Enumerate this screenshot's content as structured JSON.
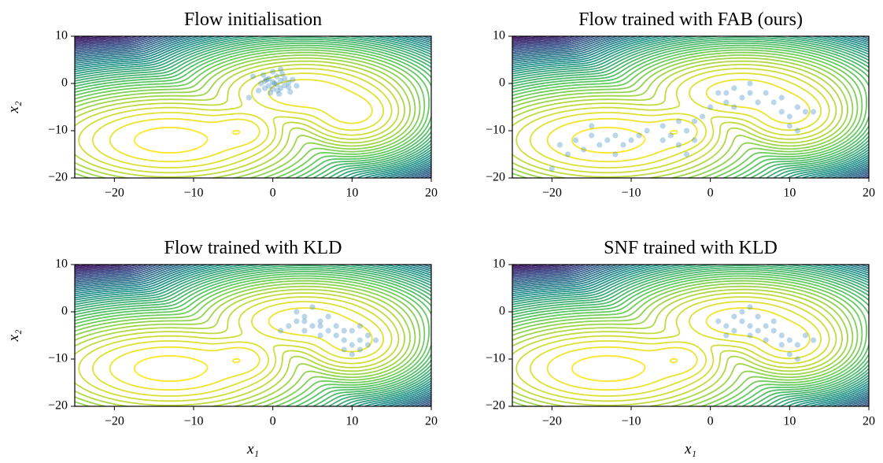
{
  "chart_data": [
    {
      "type": "scatter",
      "title": "Flow initialisation",
      "ylabel": "x₂",
      "xlim": [
        -25,
        20
      ],
      "ylim": [
        -20,
        10
      ],
      "xticks": [
        {
          "value": -20,
          "label": "−20"
        },
        {
          "value": -10,
          "label": "−10"
        },
        0,
        10,
        20
      ],
      "yticks": [
        {
          "value": -20,
          "label": "−20"
        },
        {
          "value": -10,
          "label": "−10"
        },
        0,
        10
      ],
      "series": [
        {
          "color": "#1f77b4",
          "x": [
            -1.5,
            -1,
            -0.5,
            0,
            0.5,
            1,
            1.5,
            2,
            -1,
            0,
            1,
            2,
            -0.5,
            0.5,
            1.5,
            -1.8,
            2.5,
            0,
            -0.3,
            0.8,
            1.2,
            -1.2,
            0.2,
            2.2,
            -2.5,
            -3,
            1,
            0.6,
            -0.8,
            3
          ],
          "y": [
            0,
            0.5,
            -0.5,
            0.3,
            -0.2,
            0.6,
            -0.4,
            0.2,
            -1,
            -1.2,
            -1,
            -0.8,
            1,
            1.5,
            1,
            -1.5,
            0.8,
            2.5,
            -2,
            -2.2,
            2,
            1.8,
            0,
            -1.8,
            1.5,
            -3,
            3,
            -1.5,
            0.8,
            -0.5
          ]
        }
      ]
    },
    {
      "type": "scatter",
      "title": "Flow trained with FAB (ours)",
      "xlim": [
        -25,
        20
      ],
      "ylim": [
        -20,
        10
      ],
      "xticks": [
        {
          "value": -20,
          "label": "−20"
        },
        {
          "value": -10,
          "label": "−10"
        },
        0,
        10,
        20
      ],
      "yticks": [
        {
          "value": -20,
          "label": "−20"
        },
        {
          "value": -10,
          "label": "−10"
        },
        0,
        10
      ],
      "series": [
        {
          "color": "#1f77b4",
          "x": [
            -19,
            -17,
            -16,
            -15,
            -14,
            -13,
            -12,
            -11,
            -10,
            -9,
            -18,
            -12,
            -15,
            -20,
            -6,
            -5,
            -4,
            -3,
            -2,
            -4,
            -6,
            -2,
            -3,
            1,
            2,
            3,
            4,
            5,
            6,
            7,
            3,
            5,
            2,
            8,
            9,
            10,
            11,
            12,
            10,
            11,
            13,
            9,
            -8,
            0,
            -1
          ],
          "y": [
            -13,
            -12,
            -14,
            -11,
            -13,
            -12,
            -11,
            -13,
            -12,
            -11,
            -15,
            -15,
            -9,
            -18,
            -9,
            -11,
            -8,
            -10,
            -12,
            -13,
            -12,
            -8,
            -15,
            -2,
            -4,
            -1,
            -3,
            -2,
            -4,
            -2,
            -5,
            0,
            -2,
            -4,
            -6,
            -7,
            -5,
            -6,
            -9,
            -10,
            -6,
            -3,
            -10,
            -5,
            -7
          ]
        }
      ]
    },
    {
      "type": "scatter",
      "title": "Flow trained with KLD",
      "xlabel": "x₁",
      "ylabel": "x₂",
      "xlim": [
        -25,
        20
      ],
      "ylim": [
        -20,
        10
      ],
      "xticks": [
        {
          "value": -20,
          "label": "−20"
        },
        {
          "value": -10,
          "label": "−10"
        },
        0,
        10,
        20
      ],
      "yticks": [
        {
          "value": -20,
          "label": "−20"
        },
        {
          "value": -10,
          "label": "−10"
        },
        0,
        10
      ],
      "series": [
        {
          "color": "#1f77b4",
          "x": [
            2,
            3,
            4,
            5,
            6,
            7,
            4,
            3,
            5,
            6,
            8,
            8,
            9,
            10,
            10,
            11,
            12,
            11,
            10,
            9,
            13,
            12,
            7,
            1,
            4,
            6,
            9,
            11
          ],
          "y": [
            -3,
            -2,
            -1,
            -3,
            -2,
            -4,
            -4,
            0,
            1,
            -5,
            -3,
            -5,
            -6,
            -7,
            -4,
            -6,
            -5,
            -8,
            -9,
            -8,
            -6,
            -7,
            -1,
            -4,
            -2,
            -3,
            -4,
            -3
          ]
        }
      ]
    },
    {
      "type": "scatter",
      "title": "SNF trained with KLD",
      "xlabel": "x₁",
      "xlim": [
        -25,
        20
      ],
      "ylim": [
        -20,
        10
      ],
      "xticks": [
        {
          "value": -20,
          "label": "−20"
        },
        {
          "value": -10,
          "label": "−10"
        },
        0,
        10,
        20
      ],
      "yticks": [
        {
          "value": -20,
          "label": "−20"
        },
        {
          "value": -10,
          "label": "−10"
        },
        0,
        10
      ],
      "series": [
        {
          "color": "#1f77b4",
          "x": [
            1,
            2,
            3,
            4,
            5,
            6,
            3,
            4,
            5,
            7,
            8,
            9,
            10,
            11,
            12,
            10,
            11,
            9,
            13,
            7,
            2,
            6,
            8,
            5
          ],
          "y": [
            -2,
            -3,
            -1,
            -2,
            -3,
            -1,
            -4,
            0,
            -5,
            -3,
            -4,
            -5,
            -6,
            -7,
            -5,
            -9,
            -10,
            -7,
            -6,
            -6,
            -5,
            -4,
            -2,
            1
          ]
        }
      ]
    }
  ]
}
